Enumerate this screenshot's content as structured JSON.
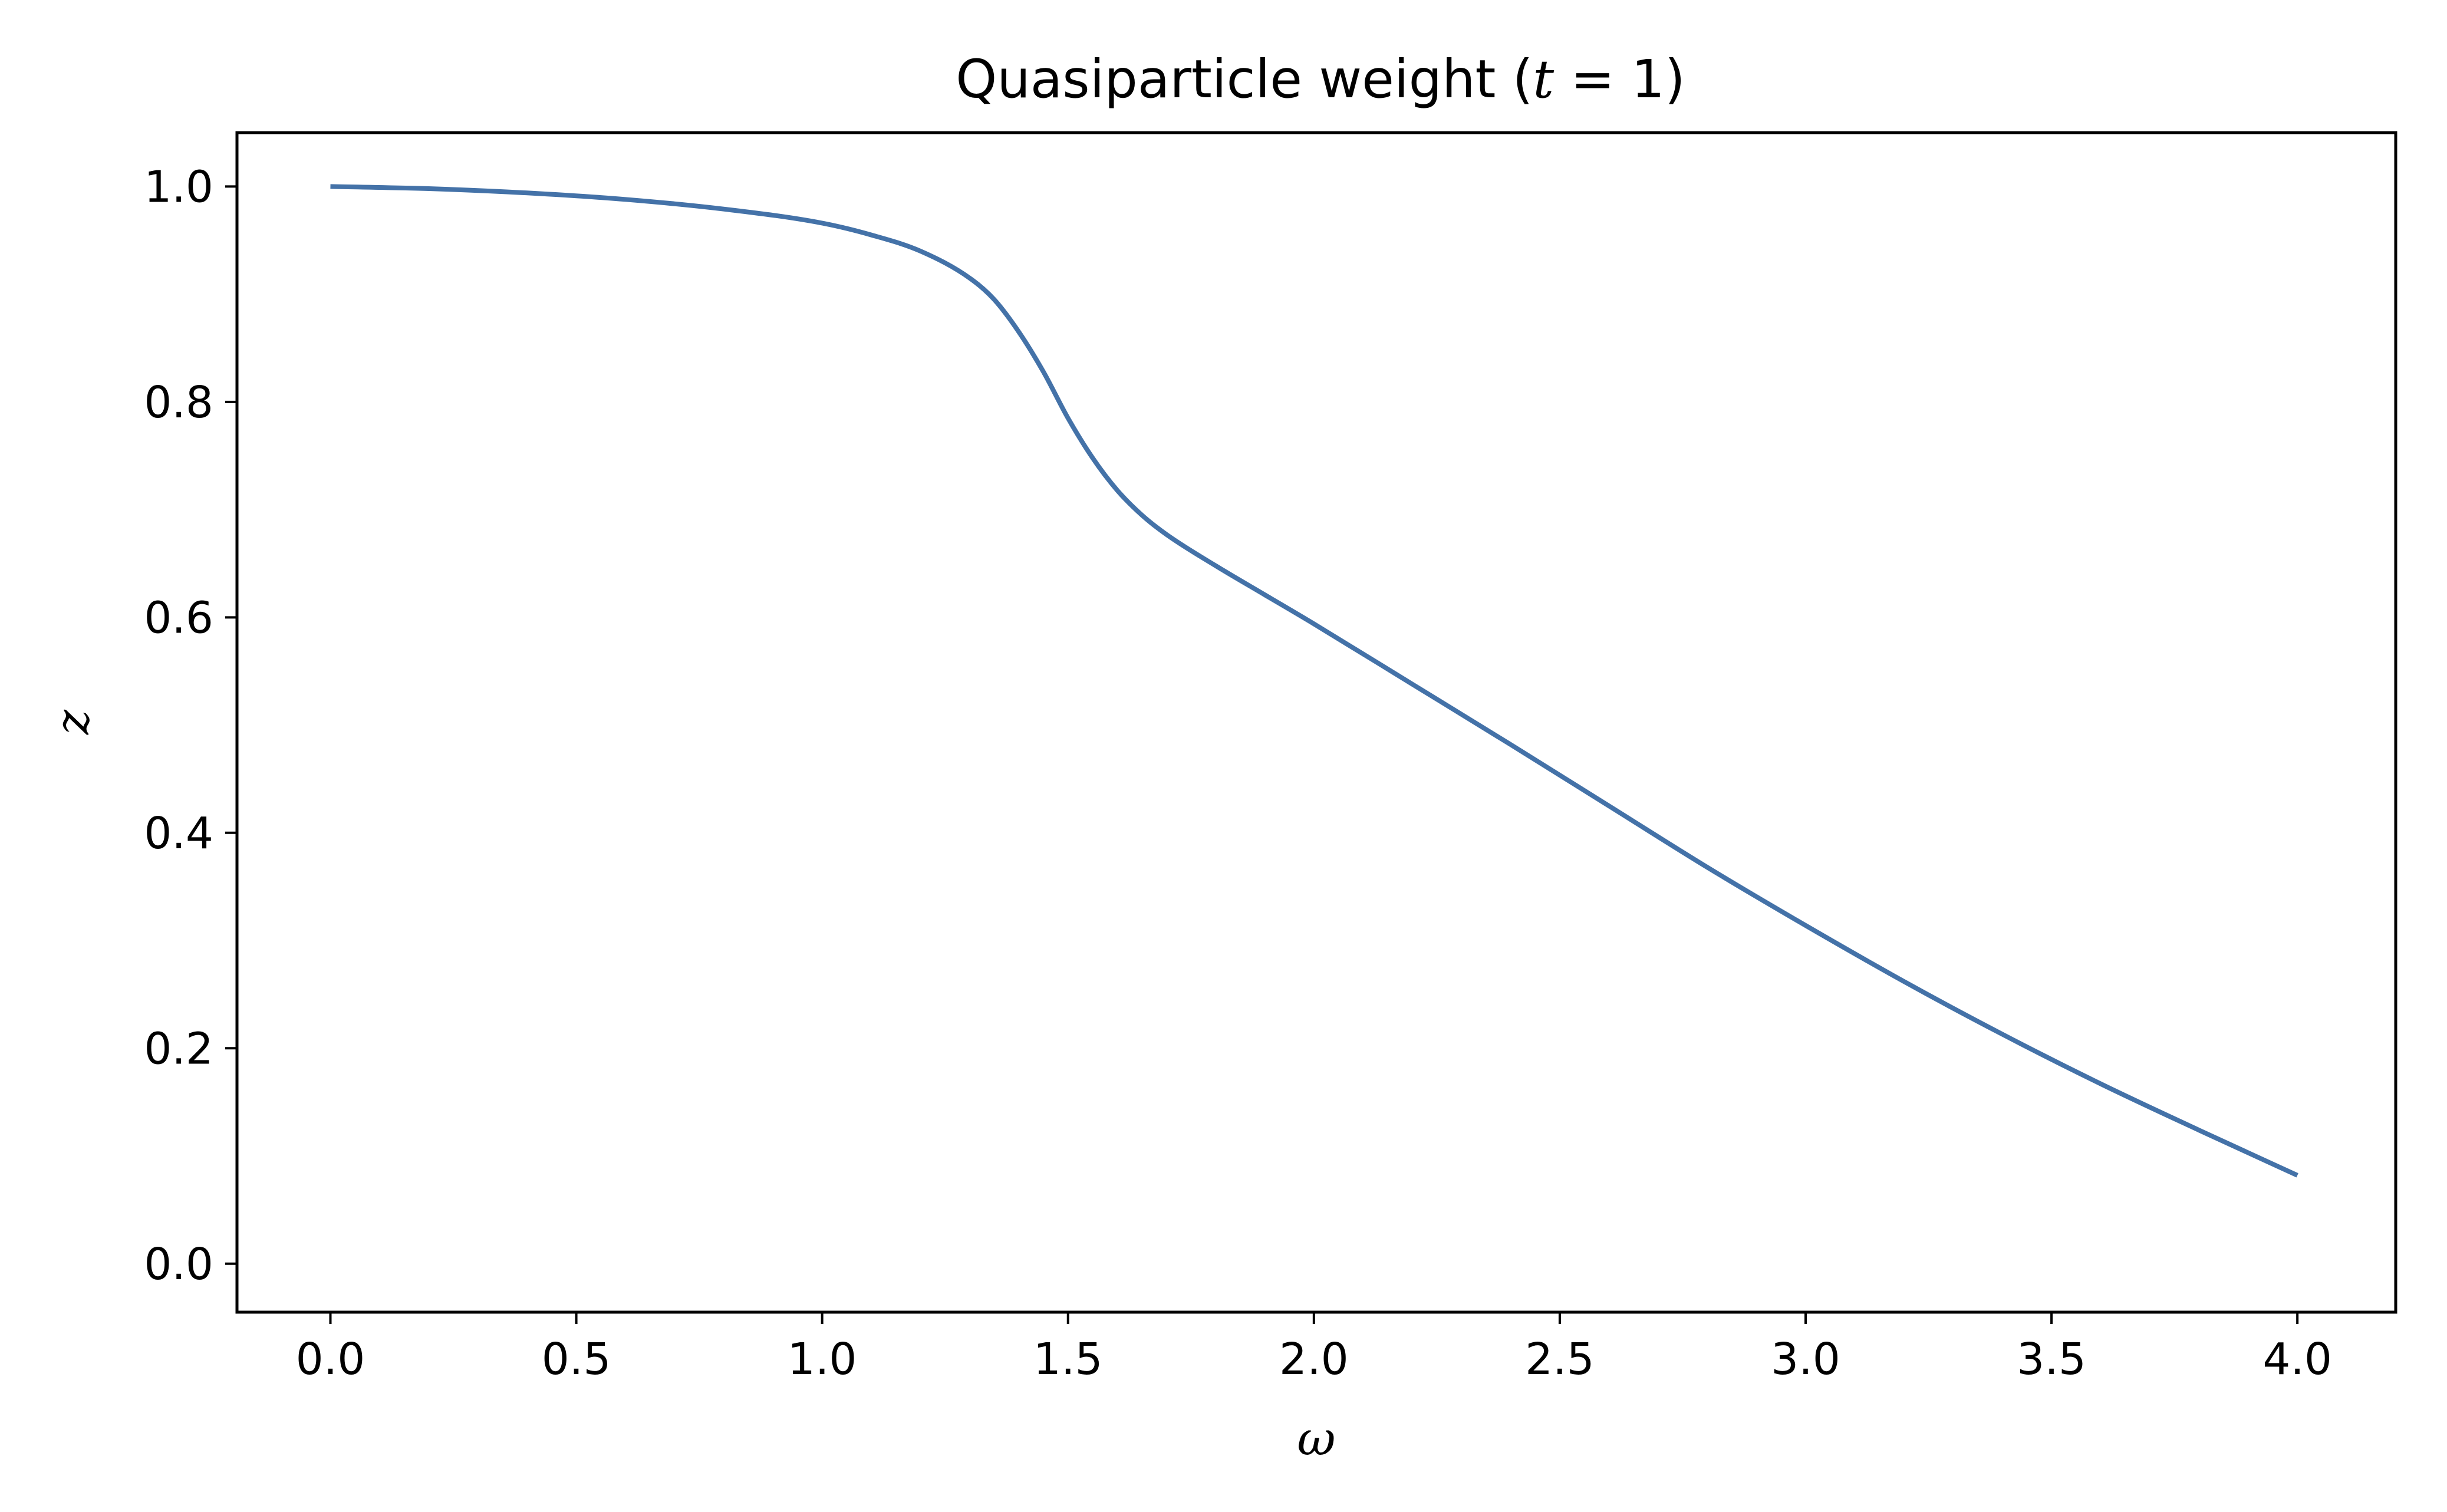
{
  "chart_data": {
    "type": "line",
    "title": {
      "prefix": "Quasiparticle weight (",
      "math_var": "t",
      "math_rest": " = 1",
      "suffix": ")"
    },
    "xlabel": "ω",
    "ylabel": "z",
    "xlim": [
      -0.19,
      4.2
    ],
    "ylim": [
      -0.045,
      1.05
    ],
    "x_ticks": [
      0.0,
      0.5,
      1.0,
      1.5,
      2.0,
      2.5,
      3.0,
      3.5,
      4.0
    ],
    "x_tick_labels": [
      "0.0",
      "0.5",
      "1.0",
      "1.5",
      "2.0",
      "2.5",
      "3.0",
      "3.5",
      "4.0"
    ],
    "y_ticks": [
      0.0,
      0.2,
      0.4,
      0.6,
      0.8,
      1.0
    ],
    "y_tick_labels": [
      "0.0",
      "0.2",
      "0.4",
      "0.6",
      "0.8",
      "1.0"
    ],
    "grid": false,
    "series": [
      {
        "color": "#4472a8",
        "x": [
          0.0,
          0.2,
          0.4,
          0.6,
          0.8,
          1.0,
          1.1,
          1.2,
          1.3,
          1.35,
          1.4,
          1.45,
          1.5,
          1.55,
          1.6,
          1.65,
          1.7,
          1.8,
          1.9,
          2.0,
          2.2,
          2.4,
          2.6,
          2.8,
          3.0,
          3.2,
          3.4,
          3.6,
          3.8,
          4.0
        ],
        "y": [
          1.0,
          0.998,
          0.994,
          0.988,
          0.979,
          0.966,
          0.955,
          0.94,
          0.915,
          0.895,
          0.865,
          0.828,
          0.785,
          0.748,
          0.718,
          0.695,
          0.677,
          0.648,
          0.621,
          0.594,
          0.538,
          0.482,
          0.425,
          0.368,
          0.314,
          0.262,
          0.213,
          0.167,
          0.124,
          0.082
        ]
      }
    ]
  }
}
